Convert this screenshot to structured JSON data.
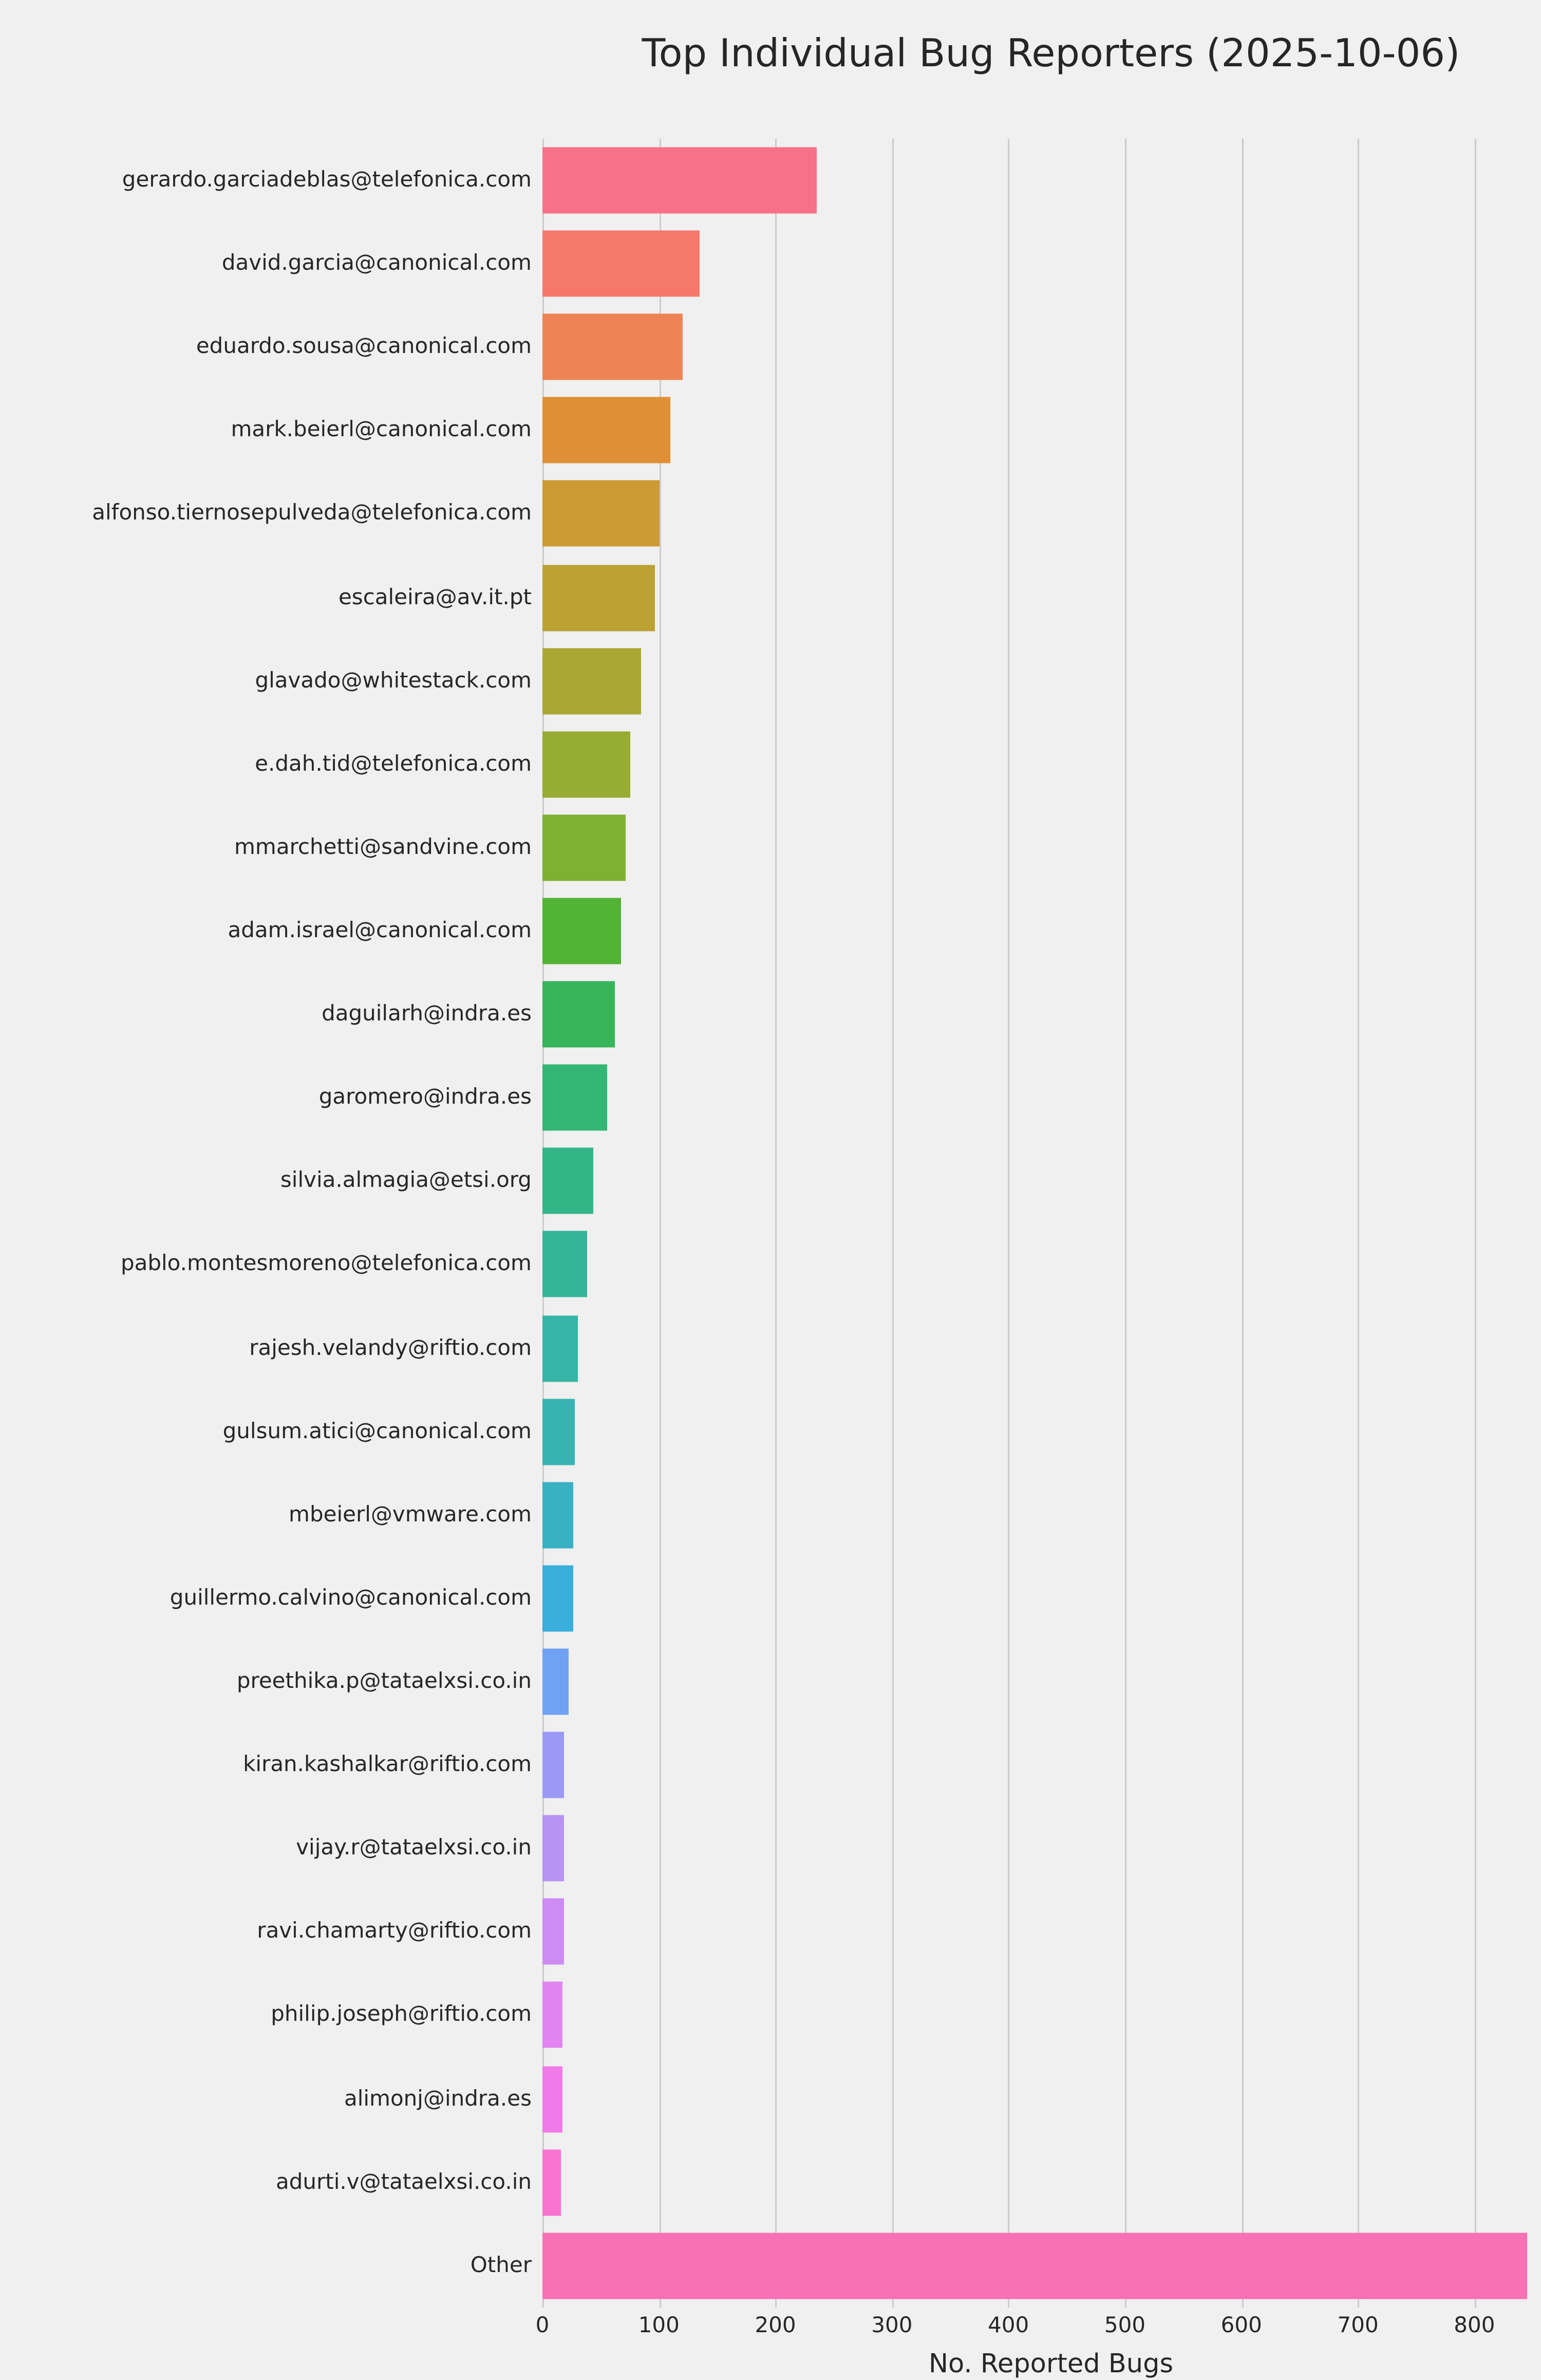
{
  "chart_data": {
    "type": "bar",
    "orientation": "horizontal",
    "title": "Top Individual Bug Reporters (2025-10-06)",
    "xlabel": "No. Reported Bugs",
    "ylabel": "",
    "xlim": [
      0,
      873
    ],
    "xticks": [
      0,
      100,
      200,
      300,
      400,
      500,
      600,
      700,
      800
    ],
    "grid": true,
    "legend": "none",
    "background_color": "#f0f0f0",
    "gridline_color": "#cbcbcb",
    "text_color": "#262626",
    "categories": [
      "gerardo.garciadeblas@telefonica.com",
      "david.garcia@canonical.com",
      "eduardo.sousa@canonical.com",
      "mark.beierl@canonical.com",
      "alfonso.tiernosepulveda@telefonica.com",
      "escaleira@av.it.pt",
      "glavado@whitestack.com",
      "e.dah.tid@telefonica.com",
      "mmarchetti@sandvine.com",
      "adam.israel@canonical.com",
      "daguilarh@indra.es",
      "garomero@indra.es",
      "silvia.almagia@etsi.org",
      "pablo.montesmoreno@telefonica.com",
      "rajesh.velandy@riftio.com",
      "gulsum.atici@canonical.com",
      "mbeierl@vmware.com",
      "guillermo.calvino@canonical.com",
      "preethika.p@tataelxsi.co.in",
      "kiran.kashalkar@riftio.com",
      "vijay.r@tataelxsi.co.in",
      "ravi.chamarty@riftio.com",
      "philip.joseph@riftio.com",
      "alimonj@indra.es",
      "adurti.v@tataelxsi.co.in",
      "Other"
    ],
    "values": [
      236,
      135,
      120,
      110,
      101,
      96,
      85,
      76,
      72,
      68,
      62,
      55,
      44,
      38,
      31,
      28,
      26,
      26,
      22,
      18,
      18,
      18,
      17,
      17,
      16,
      845
    ],
    "bar_colors": [
      "#f77189",
      "#f5786b",
      "#ee8455",
      "#df9036",
      "#cc9b33",
      "#bba233",
      "#aaa733",
      "#97ac32",
      "#7fb032",
      "#52b434",
      "#36b55b",
      "#34b674",
      "#34b588",
      "#35b597",
      "#36b4a5",
      "#37b3b2",
      "#38b1c3",
      "#3aaedb",
      "#70a2f4",
      "#9c99f5",
      "#b793f4",
      "#cd8cf3",
      "#e184f2",
      "#f07be8",
      "#f973d1",
      "#f871b4"
    ]
  }
}
